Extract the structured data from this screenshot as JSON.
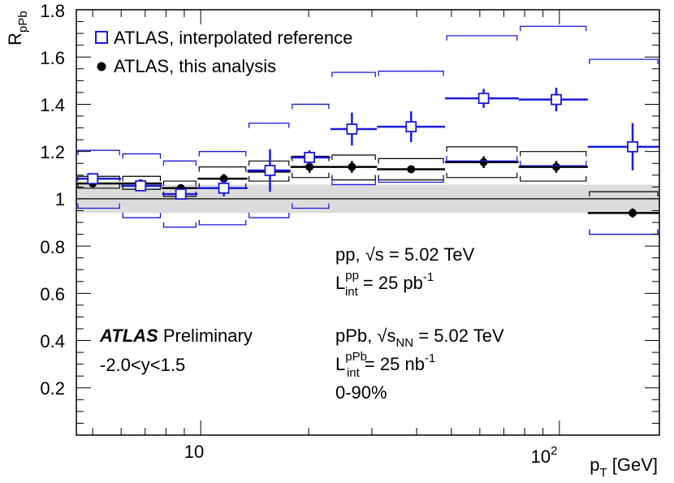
{
  "chart_data": {
    "type": "scatter",
    "ylabel": "R",
    "ylabel_sub": "pPb",
    "xlabel": "p",
    "xlabel_sub": "T",
    "xlabel_unit": " [GeV]",
    "xscale": "log",
    "xlim": [
      4.5,
      190
    ],
    "ylim": [
      0,
      1.8
    ],
    "y_ticks": [
      "0.2",
      "0.4",
      "0.6",
      "0.8",
      "1",
      "1.2",
      "1.4",
      "1.6",
      "1.8"
    ],
    "x_tick_10": "10",
    "x_tick_100_base": "10",
    "x_tick_100_exp": "2",
    "reference_line": 1.0,
    "norm_band": [
      0.94,
      1.06
    ],
    "legend": {
      "position": "top-left",
      "entries": [
        "ATLAS, interpolated reference",
        "ATLAS, this analysis"
      ]
    },
    "series": [
      {
        "name": "ATLAS, interpolated reference",
        "color": "#1a1adb",
        "marker": "open-square",
        "points": [
          {
            "x": 5.0,
            "xlo": 4.5,
            "xhi": 6.0,
            "y": 1.085,
            "ystat": 0.0,
            "sys_lo": 0.96,
            "sys_hi": 1.205
          },
          {
            "x": 6.8,
            "xlo": 6.0,
            "xhi": 7.8,
            "y": 1.055,
            "ystat": 0.01,
            "sys_lo": 0.92,
            "sys_hi": 1.19
          },
          {
            "x": 8.8,
            "xlo": 7.8,
            "xhi": 9.8,
            "y": 1.02,
            "ystat": 0.02,
            "sys_lo": 0.88,
            "sys_hi": 1.16
          },
          {
            "x": 11.6,
            "xlo": 9.8,
            "xhi": 13.5,
            "y": 1.045,
            "ystat": 0.035,
            "sys_lo": 0.89,
            "sys_hi": 1.2
          },
          {
            "x": 15.6,
            "xlo": 13.5,
            "xhi": 17.8,
            "y": 1.12,
            "ystat": 0.09,
            "sys_lo": 0.92,
            "sys_hi": 1.32
          },
          {
            "x": 20.1,
            "xlo": 17.8,
            "xhi": 23.0,
            "y": 1.175,
            "ystat": 0.03,
            "sys_lo": 0.96,
            "sys_hi": 1.4
          },
          {
            "x": 26.4,
            "xlo": 23.0,
            "xhi": 31.0,
            "y": 1.295,
            "ystat": 0.07,
            "sys_lo": 1.06,
            "sys_hi": 1.535
          },
          {
            "x": 38.6,
            "xlo": 31.0,
            "xhi": 48.0,
            "y": 1.305,
            "ystat": 0.065,
            "sys_lo": 1.07,
            "sys_hi": 1.54
          },
          {
            "x": 61.5,
            "xlo": 48.0,
            "xhi": 77.0,
            "y": 1.425,
            "ystat": 0.04,
            "sys_lo": 1.16,
            "sys_hi": 1.69
          },
          {
            "x": 98.0,
            "xlo": 77.0,
            "xhi": 120.0,
            "y": 1.42,
            "ystat": 0.05,
            "sys_lo": 1.14,
            "sys_hi": 1.73
          },
          {
            "x": 160.0,
            "xlo": 120.0,
            "xhi": 190.0,
            "y": 1.22,
            "ystat": 0.1,
            "sys_lo": 0.85,
            "sys_hi": 1.59
          }
        ]
      },
      {
        "name": "ATLAS, this analysis",
        "color": "#000000",
        "marker": "filled-circle",
        "points": [
          {
            "x": 5.0,
            "xlo": 4.5,
            "xhi": 6.0,
            "y": 1.065,
            "ystat": 0.0,
            "sys_lo": 1.045,
            "sys_hi": 1.095
          },
          {
            "x": 6.8,
            "xlo": 6.0,
            "xhi": 7.8,
            "y": 1.065,
            "ystat": 0.01,
            "sys_lo": 1.04,
            "sys_hi": 1.095
          },
          {
            "x": 8.8,
            "xlo": 7.8,
            "xhi": 9.8,
            "y": 1.045,
            "ystat": 0.015,
            "sys_lo": 1.01,
            "sys_hi": 1.075
          },
          {
            "x": 11.6,
            "xlo": 9.8,
            "xhi": 13.5,
            "y": 1.085,
            "ystat": 0.02,
            "sys_lo": 1.045,
            "sys_hi": 1.135
          },
          {
            "x": 15.6,
            "xlo": 13.5,
            "xhi": 17.8,
            "y": 1.115,
            "ystat": 0.02,
            "sys_lo": 1.075,
            "sys_hi": 1.16
          },
          {
            "x": 20.1,
            "xlo": 17.8,
            "xhi": 23.0,
            "y": 1.135,
            "ystat": 0.025,
            "sys_lo": 1.09,
            "sys_hi": 1.18
          },
          {
            "x": 26.4,
            "xlo": 23.0,
            "xhi": 31.0,
            "y": 1.135,
            "ystat": 0.025,
            "sys_lo": 1.08,
            "sys_hi": 1.185
          },
          {
            "x": 38.6,
            "xlo": 31.0,
            "xhi": 48.0,
            "y": 1.125,
            "ystat": 0.015,
            "sys_lo": 1.08,
            "sys_hi": 1.17
          },
          {
            "x": 61.5,
            "xlo": 48.0,
            "xhi": 77.0,
            "y": 1.155,
            "ystat": 0.025,
            "sys_lo": 1.09,
            "sys_hi": 1.22
          },
          {
            "x": 98.0,
            "xlo": 77.0,
            "xhi": 120.0,
            "y": 1.135,
            "ystat": 0.025,
            "sys_lo": 1.075,
            "sys_hi": 1.2
          },
          {
            "x": 160.0,
            "xlo": 120.0,
            "xhi": 190.0,
            "y": 0.94,
            "ystat": 0.02,
            "sys_lo": 0.85,
            "sys_hi": 1.03
          }
        ]
      }
    ],
    "annotations": {
      "pp_line1_prefix": "pp, ",
      "pp_sqrt": "s",
      "pp_line1_suffix": " = 5.02 TeV",
      "pp_lumi_L": "L",
      "pp_lumi_sup": "pp",
      "pp_lumi_sub": "int",
      "pp_lumi_value": " = 25 pb",
      "pp_lumi_exp": "-1",
      "atlas_bold": "ATLAS",
      "atlas_rest": " Preliminary",
      "rapidity": "-2.0<y<1.5",
      "ppb_line1_prefix": "pPb, ",
      "ppb_sqrt": "s",
      "ppb_sqrt_sub": "NN",
      "ppb_line1_suffix": " = 5.02 TeV",
      "ppb_lumi_L": "L",
      "ppb_lumi_sup": "pPb",
      "ppb_lumi_sub": "int",
      "ppb_lumi_value": " = 25 nb",
      "ppb_lumi_exp": "-1",
      "centrality": "0-90%"
    }
  }
}
